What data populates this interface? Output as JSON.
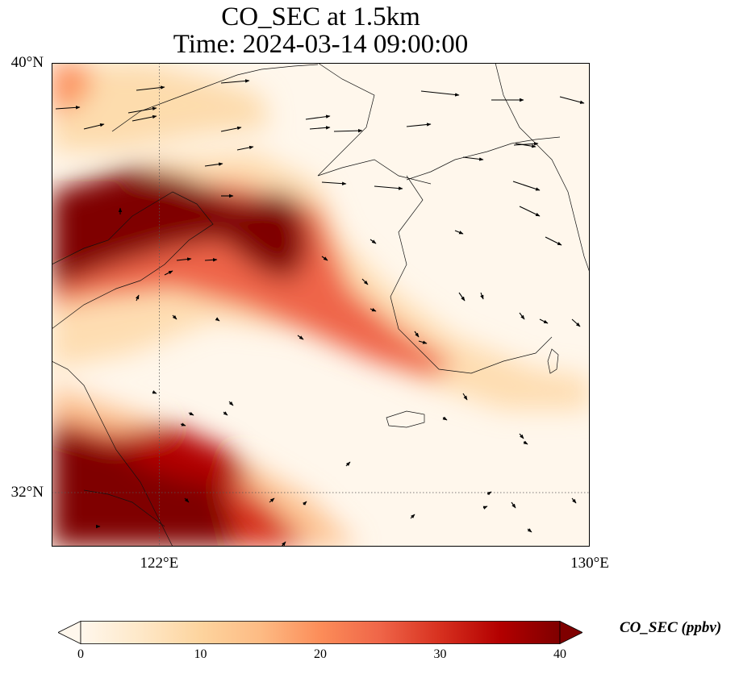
{
  "title": {
    "line1": "CO_SEC at 1.5km",
    "line2": "Time: 2024-03-14 09:00:00"
  },
  "lat_ticks": [
    {
      "label": "40°N",
      "value": 40
    },
    {
      "label": "32°N",
      "value": 32
    }
  ],
  "lon_ticks": [
    {
      "label": "122°E",
      "value": 122
    },
    {
      "label": "130°E",
      "value": 130
    }
  ],
  "map": {
    "lon_range": [
      120,
      130
    ],
    "lat_range": [
      31,
      40
    ],
    "gridlines": {
      "lons": [
        122
      ],
      "lats": [
        32
      ],
      "style": "dotted"
    },
    "field": "CO_SEC",
    "wind_vectors": true
  },
  "colorbar": {
    "label": "CO_SEC (ppbv)",
    "min": 0,
    "max": 40,
    "extend": "both",
    "ticks": [
      "0",
      "10",
      "20",
      "30",
      "40"
    ],
    "colormap": "OrRd",
    "colors": [
      "#fff7ec",
      "#fee8c8",
      "#fdd49e",
      "#fdbb84",
      "#fc8d59",
      "#ef6548",
      "#d7301f",
      "#b30000",
      "#7f0000"
    ]
  }
}
